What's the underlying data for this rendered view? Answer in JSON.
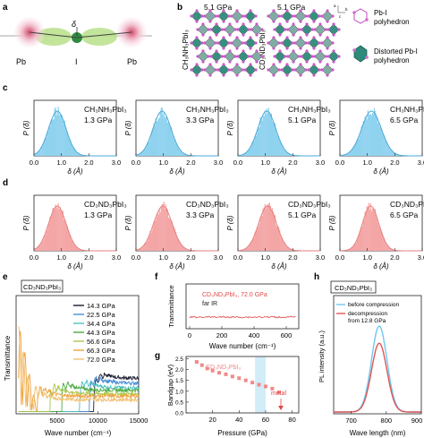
{
  "panel_labels": {
    "a": "a",
    "b": "b",
    "c": "c",
    "d": "d",
    "e": "e",
    "f": "f",
    "g": "g",
    "h": "h"
  },
  "panel_a": {
    "pb_left": "Pb",
    "pb_right": "Pb",
    "iodine": "I",
    "delta": "δ"
  },
  "panel_b": {
    "left_pressure": "5.1 GPa",
    "right_pressure": "5.1 GPa",
    "left_compound": "CH₃NH₃PbI₃",
    "right_compound": "CD₃ND₃PbI₃",
    "axis_a": "a",
    "axis_b": "b",
    "axis_c": "c",
    "legend": [
      {
        "line1": "Pb-I",
        "line2": "polyhedron",
        "color": "#d070d0"
      },
      {
        "line1": "Distorted Pb-I",
        "line2": "polyhedron",
        "color": "#2e8a7a"
      }
    ]
  },
  "hist_common": {
    "ylabel": "P (δ)",
    "xlabel": "δ (Å)",
    "xticks": [
      "0.0",
      "1.0",
      "2.0",
      "3.0"
    ]
  },
  "panel_c": [
    {
      "compound": "CH₃NH₃PbI₃",
      "pressure": "1.3 GPa"
    },
    {
      "compound": "CH₃NH₃PbI₃",
      "pressure": "3.3 GPa"
    },
    {
      "compound": "CH₃NH₃PbI₃",
      "pressure": "5.1 GPa"
    },
    {
      "compound": "CH₃NH₃PbI₃",
      "pressure": "6.5 GPa"
    }
  ],
  "panel_d": [
    {
      "compound": "CD₃ND₃PbI₃",
      "pressure": "1.3 GPa"
    },
    {
      "compound": "CD₃ND₃PbI₃",
      "pressure": "3.3 GPa"
    },
    {
      "compound": "CD₃ND₃PbI₃",
      "pressure": "5.1 GPa"
    },
    {
      "compound": "CD₃ND₃PbI₃",
      "pressure": "6.5 GPa"
    }
  ],
  "panel_e": {
    "box_label": "CD₃ND₃PbI₃",
    "ylabel": "Transmittance",
    "xlabel": "Wave number (cm⁻¹)",
    "xticks": [
      "5000",
      "10000",
      "15000"
    ]
  },
  "panel_f": {
    "note_line1": "CD₃ND₃PbI₃, 72.0 GPa",
    "note_line2": "far IR",
    "ylabel": "Transmittance",
    "xlabel": "Wave number (cm⁻¹)",
    "xticks": [
      "0",
      "200",
      "400",
      "600"
    ]
  },
  "panel_g": {
    "compound": "CD₃ND₃PbI₃",
    "annotation": "metal",
    "ylabel": "Bandgap (eV)",
    "xlabel": "Pressure (GPa)",
    "xticks": [
      "20",
      "40",
      "60",
      "80"
    ],
    "yticks": [
      "0.0",
      "0.5",
      "1.0",
      "1.5",
      "2.0",
      "2.5"
    ]
  },
  "panel_h": {
    "box_label": "CD₃ND₃PbI₃",
    "ylabel": "PL intensity (a.u.)",
    "xlabel": "Wave length (nm)",
    "xticks": [
      "700",
      "800",
      "900"
    ],
    "legend_1": "before compression",
    "legend_2a": "decompression",
    "legend_2b": "from 12.8 GPa"
  },
  "chart_data": [
    {
      "type": "bar",
      "panel": "c-1",
      "label": "CH₃NH₃PbI₃ 1.3 GPa",
      "color": "#8fd3ef",
      "xlim": [
        0,
        3
      ],
      "peak": 0.85,
      "width": 0.32
    },
    {
      "type": "bar",
      "panel": "c-2",
      "label": "CH₃NH₃PbI₃ 3.3 GPa",
      "color": "#8fd3ef",
      "xlim": [
        0,
        3
      ],
      "peak": 0.95,
      "width": 0.33
    },
    {
      "type": "bar",
      "panel": "c-3",
      "label": "CH₃NH₃PbI₃ 5.1 GPa",
      "color": "#8fd3ef",
      "xlim": [
        0,
        3
      ],
      "peak": 1.05,
      "width": 0.33
    },
    {
      "type": "bar",
      "panel": "c-4",
      "label": "CH₃NH₃PbI₃ 6.5 GPa",
      "color": "#8fd3ef",
      "xlim": [
        0,
        3
      ],
      "peak": 1.15,
      "width": 0.36
    },
    {
      "type": "bar",
      "panel": "d-1",
      "label": "CD₃ND₃PbI₃ 1.3 GPa",
      "color": "#f4a6a6",
      "xlim": [
        0,
        3
      ],
      "peak": 0.85,
      "width": 0.32
    },
    {
      "type": "bar",
      "panel": "d-2",
      "label": "CD₃ND₃PbI₃ 3.3 GPa",
      "color": "#f4a6a6",
      "xlim": [
        0,
        3
      ],
      "peak": 0.98,
      "width": 0.34
    },
    {
      "type": "bar",
      "panel": "d-3",
      "label": "CD₃ND₃PbI₃ 5.1 GPa",
      "color": "#f4a6a6",
      "xlim": [
        0,
        3
      ],
      "peak": 1.08,
      "width": 0.33
    },
    {
      "type": "bar",
      "panel": "d-4",
      "label": "CD₃ND₃PbI₃ 6.5 GPa",
      "color": "#f4a6a6",
      "xlim": [
        0,
        3
      ],
      "peak": 1.12,
      "width": 0.3
    },
    {
      "type": "line",
      "panel": "e",
      "xlim": [
        0,
        15000
      ],
      "series": [
        {
          "name": "14.3 GPa",
          "color": "#1a1a2e",
          "start": 9500,
          "value": 0.3
        },
        {
          "name": "22.5 GPa",
          "color": "#4a8fd6",
          "start": 9000,
          "value": 0.26
        },
        {
          "name": "34.4 GPa",
          "color": "#4fc0c0",
          "start": 7800,
          "value": 0.22
        },
        {
          "name": "44.3 GPa",
          "color": "#49a83c",
          "start": 5600,
          "value": 0.2
        },
        {
          "name": "56.6 GPa",
          "color": "#a8c84a",
          "start": 4200,
          "value": 0.17
        },
        {
          "name": "66.3 GPa",
          "color": "#f0a23c",
          "start": 2600,
          "value": 0.15
        },
        {
          "name": "72.0 GPa",
          "color": "#f0c070",
          "start": 2200,
          "value": 0.12
        }
      ]
    },
    {
      "type": "line",
      "panel": "f",
      "xlim": [
        0,
        700
      ],
      "series": [
        {
          "name": "CD₃ND₃PbI₃, 72.0 GPa",
          "color": "#e04848",
          "value": 0.0
        }
      ]
    },
    {
      "type": "scatter",
      "panel": "g",
      "xlim": [
        0,
        85
      ],
      "ylim": [
        0,
        2.6
      ],
      "x": [
        8,
        12,
        16,
        20,
        25,
        30,
        35,
        40,
        45,
        50,
        55,
        60,
        65,
        70
      ],
      "y": [
        2.35,
        2.2,
        2.05,
        1.95,
        1.85,
        1.78,
        1.68,
        1.6,
        1.5,
        1.4,
        1.3,
        1.22,
        1.12,
        0.95
      ],
      "highlight_range": [
        52,
        60
      ]
    },
    {
      "type": "line",
      "panel": "h",
      "xlim": [
        650,
        900
      ],
      "series": [
        {
          "name": "before compression",
          "color": "#6ec9ee",
          "peak": 780,
          "amplitude": 1.0
        },
        {
          "name": "decompression from 12.8 GPa",
          "color": "#e05555",
          "peak": 780,
          "amplitude": 0.8
        }
      ]
    }
  ]
}
